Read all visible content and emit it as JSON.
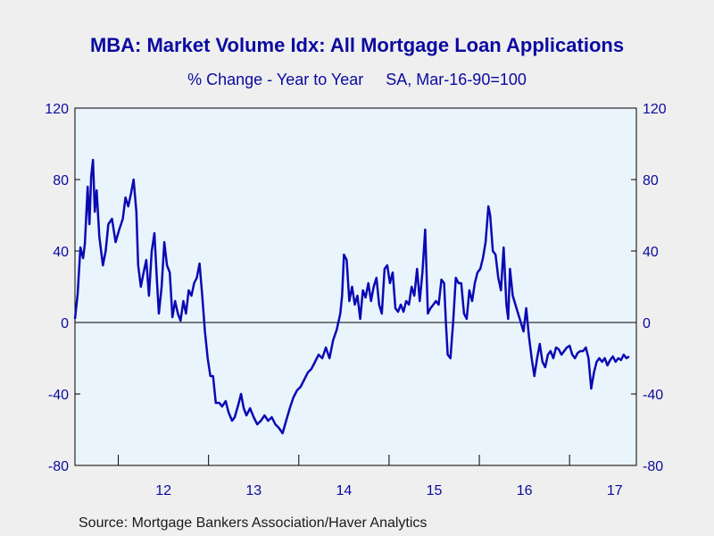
{
  "title": "MBA: Market Volume Idx: All Mortgage Loan Applications",
  "subtitle": "% Change - Year to Year     SA, Mar-16-90=100",
  "source": "Source:  Mortgage Bankers Association/Haver Analytics",
  "colors": {
    "line": "#0a0ab4",
    "text": "#0a0aa0",
    "plot_background": "#eaf4fc",
    "page_background": "#efefef"
  },
  "chart_data": {
    "type": "line",
    "title": "MBA: Market Volume Idx: All Mortgage Loan Applications",
    "subtitle": "% Change - Year to Year     SA, Mar-16-90=100",
    "xlabel": "",
    "ylabel": "",
    "ylim": [
      -80,
      120
    ],
    "yticks": [
      120,
      80,
      40,
      0,
      -40,
      -80
    ],
    "xlim": [
      2011.52,
      2017.74
    ],
    "xtick_labels": [
      "12",
      "13",
      "14",
      "15",
      "16",
      "17"
    ],
    "xtick_positions": [
      2012.5,
      2013.5,
      2014.5,
      2015.5,
      2016.5,
      2017.5
    ],
    "year_boundaries": [
      2012,
      2013,
      2014,
      2015,
      2016,
      2017
    ],
    "zero_line": true,
    "grid": false,
    "legend": "none",
    "series": [
      {
        "values": [
          [
            2011.52,
            2
          ],
          [
            2011.55,
            16
          ],
          [
            2011.58,
            42
          ],
          [
            2011.61,
            36
          ],
          [
            2011.63,
            44
          ],
          [
            2011.66,
            76
          ],
          [
            2011.68,
            55
          ],
          [
            2011.7,
            82
          ],
          [
            2011.72,
            91
          ],
          [
            2011.74,
            62
          ],
          [
            2011.76,
            74
          ],
          [
            2011.79,
            48
          ],
          [
            2011.83,
            32
          ],
          [
            2011.86,
            40
          ],
          [
            2011.89,
            55
          ],
          [
            2011.93,
            58
          ],
          [
            2011.97,
            45
          ],
          [
            2012.01,
            52
          ],
          [
            2012.05,
            58
          ],
          [
            2012.08,
            70
          ],
          [
            2012.11,
            65
          ],
          [
            2012.14,
            72
          ],
          [
            2012.17,
            80
          ],
          [
            2012.2,
            62
          ],
          [
            2012.22,
            32
          ],
          [
            2012.25,
            20
          ],
          [
            2012.28,
            28
          ],
          [
            2012.31,
            35
          ],
          [
            2012.34,
            15
          ],
          [
            2012.37,
            40
          ],
          [
            2012.4,
            50
          ],
          [
            2012.43,
            22
          ],
          [
            2012.45,
            5
          ],
          [
            2012.48,
            20
          ],
          [
            2012.51,
            45
          ],
          [
            2012.54,
            32
          ],
          [
            2012.57,
            28
          ],
          [
            2012.6,
            3
          ],
          [
            2012.63,
            12
          ],
          [
            2012.66,
            5
          ],
          [
            2012.69,
            1
          ],
          [
            2012.72,
            12
          ],
          [
            2012.75,
            5
          ],
          [
            2012.78,
            18
          ],
          [
            2012.81,
            15
          ],
          [
            2012.84,
            22
          ],
          [
            2012.87,
            25
          ],
          [
            2012.9,
            33
          ],
          [
            2012.93,
            15
          ],
          [
            2012.96,
            -5
          ],
          [
            2012.99,
            -20
          ],
          [
            2013.02,
            -30
          ],
          [
            2013.05,
            -30
          ],
          [
            2013.08,
            -45
          ],
          [
            2013.12,
            -45
          ],
          [
            2013.15,
            -47
          ],
          [
            2013.19,
            -44
          ],
          [
            2013.22,
            -50
          ],
          [
            2013.26,
            -55
          ],
          [
            2013.29,
            -53
          ],
          [
            2013.33,
            -46
          ],
          [
            2013.36,
            -40
          ],
          [
            2013.39,
            -48
          ],
          [
            2013.42,
            -52
          ],
          [
            2013.46,
            -48
          ],
          [
            2013.5,
            -53
          ],
          [
            2013.54,
            -57
          ],
          [
            2013.58,
            -55
          ],
          [
            2013.62,
            -52
          ],
          [
            2013.66,
            -55
          ],
          [
            2013.7,
            -53
          ],
          [
            2013.74,
            -57
          ],
          [
            2013.78,
            -59
          ],
          [
            2013.82,
            -62
          ],
          [
            2013.86,
            -55
          ],
          [
            2013.9,
            -48
          ],
          [
            2013.94,
            -42
          ],
          [
            2013.98,
            -38
          ],
          [
            2014.02,
            -36
          ],
          [
            2014.06,
            -32
          ],
          [
            2014.1,
            -28
          ],
          [
            2014.14,
            -26
          ],
          [
            2014.18,
            -22
          ],
          [
            2014.22,
            -18
          ],
          [
            2014.26,
            -20
          ],
          [
            2014.3,
            -14
          ],
          [
            2014.34,
            -20
          ],
          [
            2014.38,
            -10
          ],
          [
            2014.42,
            -4
          ],
          [
            2014.46,
            5
          ],
          [
            2014.48,
            15
          ],
          [
            2014.5,
            38
          ],
          [
            2014.53,
            35
          ],
          [
            2014.56,
            12
          ],
          [
            2014.59,
            20
          ],
          [
            2014.62,
            10
          ],
          [
            2014.65,
            15
          ],
          [
            2014.68,
            2
          ],
          [
            2014.71,
            18
          ],
          [
            2014.74,
            14
          ],
          [
            2014.77,
            22
          ],
          [
            2014.8,
            12
          ],
          [
            2014.83,
            20
          ],
          [
            2014.86,
            25
          ],
          [
            2014.89,
            10
          ],
          [
            2014.92,
            5
          ],
          [
            2014.95,
            30
          ],
          [
            2014.98,
            32
          ],
          [
            2015.01,
            22
          ],
          [
            2015.04,
            28
          ],
          [
            2015.07,
            8
          ],
          [
            2015.1,
            6
          ],
          [
            2015.13,
            10
          ],
          [
            2015.16,
            6
          ],
          [
            2015.19,
            12
          ],
          [
            2015.22,
            10
          ],
          [
            2015.25,
            20
          ],
          [
            2015.28,
            15
          ],
          [
            2015.31,
            30
          ],
          [
            2015.34,
            12
          ],
          [
            2015.37,
            28
          ],
          [
            2015.4,
            52
          ],
          [
            2015.43,
            5
          ],
          [
            2015.46,
            8
          ],
          [
            2015.49,
            10
          ],
          [
            2015.52,
            12
          ],
          [
            2015.55,
            10
          ],
          [
            2015.58,
            24
          ],
          [
            2015.61,
            22
          ],
          [
            2015.63,
            0
          ],
          [
            2015.65,
            -18
          ],
          [
            2015.68,
            -20
          ],
          [
            2015.71,
            0
          ],
          [
            2015.74,
            25
          ],
          [
            2015.77,
            22
          ],
          [
            2015.8,
            22
          ],
          [
            2015.83,
            5
          ],
          [
            2015.86,
            2
          ],
          [
            2015.89,
            18
          ],
          [
            2015.92,
            12
          ],
          [
            2015.95,
            22
          ],
          [
            2015.98,
            28
          ],
          [
            2016.01,
            30
          ],
          [
            2016.04,
            36
          ],
          [
            2016.07,
            45
          ],
          [
            2016.1,
            65
          ],
          [
            2016.12,
            60
          ],
          [
            2016.15,
            40
          ],
          [
            2016.18,
            38
          ],
          [
            2016.21,
            25
          ],
          [
            2016.24,
            18
          ],
          [
            2016.27,
            42
          ],
          [
            2016.3,
            10
          ],
          [
            2016.32,
            2
          ],
          [
            2016.34,
            30
          ],
          [
            2016.37,
            15
          ],
          [
            2016.4,
            10
          ],
          [
            2016.43,
            5
          ],
          [
            2016.46,
            0
          ],
          [
            2016.49,
            -5
          ],
          [
            2016.52,
            8
          ],
          [
            2016.55,
            -8
          ],
          [
            2016.58,
            -20
          ],
          [
            2016.61,
            -30
          ],
          [
            2016.64,
            -20
          ],
          [
            2016.67,
            -12
          ],
          [
            2016.7,
            -22
          ],
          [
            2016.73,
            -25
          ],
          [
            2016.76,
            -18
          ],
          [
            2016.79,
            -16
          ],
          [
            2016.82,
            -20
          ],
          [
            2016.85,
            -14
          ],
          [
            2016.88,
            -15
          ],
          [
            2016.91,
            -18
          ],
          [
            2016.94,
            -16
          ],
          [
            2016.97,
            -14
          ],
          [
            2017.0,
            -13
          ],
          [
            2017.03,
            -18
          ],
          [
            2017.06,
            -20
          ],
          [
            2017.09,
            -17
          ],
          [
            2017.12,
            -16
          ],
          [
            2017.15,
            -16
          ],
          [
            2017.18,
            -14
          ],
          [
            2017.21,
            -20
          ],
          [
            2017.24,
            -37
          ],
          [
            2017.27,
            -28
          ],
          [
            2017.3,
            -22
          ],
          [
            2017.33,
            -20
          ],
          [
            2017.36,
            -22
          ],
          [
            2017.39,
            -20
          ],
          [
            2017.42,
            -24
          ],
          [
            2017.45,
            -21
          ],
          [
            2017.48,
            -19
          ],
          [
            2017.51,
            -22
          ],
          [
            2017.54,
            -20
          ],
          [
            2017.57,
            -21
          ],
          [
            2017.6,
            -18
          ],
          [
            2017.63,
            -20
          ],
          [
            2017.66,
            -19
          ]
        ]
      }
    ]
  }
}
